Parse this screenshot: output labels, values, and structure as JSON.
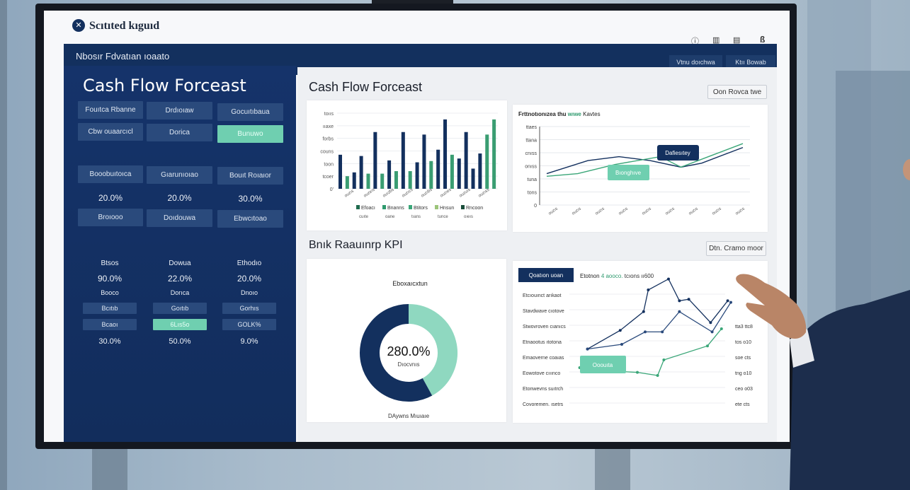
{
  "app": {
    "logo_text": "Scıtıted kıguıd",
    "header_icons": [
      "help-icon",
      "grid-icon",
      "calendar-icon",
      "user-icon"
    ]
  },
  "navbar": {
    "title": "Nbosır Fdvatıan ıoaato",
    "buttons": [
      "Vtnu doıchwa",
      "Ktıı Bowab"
    ]
  },
  "left_panel": {
    "title": "Cash Flow Forceast",
    "buttons_top": [
      "Fouıtca Rbanne",
      "Drdıoıaw",
      "Gocuıtıbaua",
      "Cbw ouaarcıcl",
      "Dorica",
      "Bunuwo"
    ],
    "active_button_index": 5,
    "metrics_row": [
      {
        "label": "Booobuıtoıca",
        "value": "20.0%"
      },
      {
        "label": "Gıarunıoıao",
        "value": "20.0%"
      },
      {
        "label": "Bouıt Roıaıor",
        "value": "30.0%"
      }
    ],
    "buttons_mid": [
      "Broıooo",
      "Doıdouwa",
      "Ebwcıtoao"
    ],
    "columns": [
      {
        "label": "Btsos",
        "value": "90.0%",
        "sub": "Booco",
        "box1": "Bcıtıb",
        "box2": "Bcaoı",
        "foot": "30.0%",
        "active": false
      },
      {
        "label": "Dowua",
        "value": "22.0%",
        "sub": "Dorıca",
        "box1": "Goıtıb",
        "box2": "6Lıs5o",
        "foot": "50.0%",
        "active": true
      },
      {
        "label": "Ethodıo",
        "value": "20.0%",
        "sub": "Dnoıo",
        "box1": "Gorhıs",
        "box2": "GOLK%",
        "foot": "9.0%",
        "active": false
      }
    ]
  },
  "main": {
    "section1_title": "Cash Flow Forceast",
    "section1_button": "Oon Rovca twe",
    "section2_title": "Bnık Raauınrp KPI",
    "section2_button": "Dtn. Cramo moor"
  },
  "colors": {
    "navy": "#13305e",
    "teal": "#6fcfb0",
    "green": "#2e9a6e",
    "dark_green": "#1f6b4e"
  },
  "chart_data": [
    {
      "type": "bar",
      "yticks": [
        "0'",
        "tcoer",
        "toon",
        "couns",
        "forbs",
        "ııaxe",
        "toııs"
      ],
      "ylim": [
        0,
        6
      ],
      "xticks": [
        "ouzıs",
        "ouzeıs",
        "ouızbs",
        "ouzıcs",
        "ouzıbs",
        "ouzıes",
        "ouzuıs",
        "ouzıss"
      ],
      "legend": [
        {
          "name": "Efoacı",
          "sub": "cuıte",
          "color": "#1f6b4e"
        },
        {
          "name": "Bnanns",
          "sub": "oane",
          "color": "#2e9a6e"
        },
        {
          "name": "Btitors",
          "sub": "tıans",
          "color": "#3aa678"
        },
        {
          "name": "Hnsun",
          "sub": "tunce",
          "color": "#9cc57a"
        },
        {
          "name": "Rncoon",
          "sub": "oıeıs",
          "color": "#1a4d3a"
        }
      ],
      "series": [
        {
          "color": "#13305e"
        },
        {
          "color": "#3a9d72"
        }
      ],
      "bars": [
        {
          "s": 0,
          "v": 2.7
        },
        {
          "s": 1,
          "v": 1.0
        },
        {
          "s": 0,
          "v": 1.3
        },
        {
          "s": 0,
          "v": 2.6
        },
        {
          "s": 1,
          "v": 1.2
        },
        {
          "s": 0,
          "v": 4.5
        },
        {
          "s": 1,
          "v": 1.2
        },
        {
          "s": 0,
          "v": 2.25
        },
        {
          "s": 1,
          "v": 1.4
        },
        {
          "s": 0,
          "v": 4.5
        },
        {
          "s": 1,
          "v": 1.4
        },
        {
          "s": 0,
          "v": 2.1
        },
        {
          "s": 0,
          "v": 4.3
        },
        {
          "s": 1,
          "v": 2.2
        },
        {
          "s": 0,
          "v": 3.1
        },
        {
          "s": 0,
          "v": 5.5
        },
        {
          "s": 1,
          "v": 2.7
        },
        {
          "s": 0,
          "v": 2.4
        },
        {
          "s": 0,
          "v": 4.5
        },
        {
          "s": 0,
          "v": 1.6
        },
        {
          "s": 0,
          "v": 2.8
        },
        {
          "s": 1,
          "v": 4.3
        },
        {
          "s": 1,
          "v": 5.5
        }
      ]
    },
    {
      "type": "line",
      "title": "Frttnotıonızea thu",
      "title_accent": "wıwe",
      "title_end": "Kavtes",
      "yticks": [
        "0",
        "tons",
        "tuna",
        "onıss",
        "cnıss",
        "ttana",
        "ttaes"
      ],
      "ylim": [
        0,
        6
      ],
      "xticks": [
        "ouzıs",
        "ouzıs",
        "ouzıs",
        "ouzıs",
        "ouzıs",
        "ouzıs",
        "ouzıs",
        "ouzıs",
        "ouzıs"
      ],
      "series": [
        {
          "color": "#13305e",
          "x": [
            0,
            2,
            3.5,
            5,
            6.5,
            7.5,
            9.5
          ],
          "y": [
            2.4,
            3.4,
            3.7,
            3.4,
            2.9,
            3.2,
            4.4
          ]
        },
        {
          "color": "#3aa678",
          "x": [
            0,
            1.5,
            3.3,
            5.5,
            6.5,
            8,
            9.5
          ],
          "y": [
            2.2,
            2.4,
            3.1,
            3.7,
            2.9,
            3.8,
            4.7
          ]
        }
      ],
      "annotations": [
        {
          "text": "Dafiesıtey",
          "color": "#13305e"
        },
        {
          "text": "Bıonghıve",
          "color": "#6fcfb0"
        }
      ]
    },
    {
      "type": "pie",
      "title": "Eboxaıcxtun",
      "center_value": "280.0%",
      "center_label": "Dıocvnıs",
      "footer": "DAywns Mıuıaıe",
      "slices": [
        {
          "value": 42,
          "color": "#8fd8c0"
        },
        {
          "value": 58,
          "color": "#13305e"
        }
      ]
    },
    {
      "type": "line",
      "tab_label": "Qoatıon uoan",
      "subtitle": "Etotnon",
      "subtitle_accent": "4 aooco.",
      "subtitle_end": "tcıons ıı600",
      "row_labels": [
        "Etcıouınct arıkaot",
        "Stavdwave cıotove",
        "Stwovroven cıanıcs",
        "Etnaootus ıtotona",
        "Emaoverne coaıas",
        "Eowotove cııınco",
        "Etonwevns suıtrch",
        "Covoremen. ısetrs"
      ],
      "right_labels": [
        "tta3 ttc8",
        "tos o10",
        "soe cts",
        "tng o10",
        "ceo o03",
        "ete cts"
      ],
      "xlim": [
        0,
        10
      ],
      "ylim": [
        0,
        8
      ],
      "series": [
        {
          "color": "#13305e",
          "x": [
            0.8,
            2.9,
            4.4,
            4.7,
            6.0,
            6.7,
            7.3,
            8.7,
            9.8
          ],
          "y": [
            4.2,
            5.4,
            6.6,
            8.0,
            8.7,
            7.3,
            7.4,
            5.9,
            7.3
          ]
        },
        {
          "color": "#2a4a7c",
          "x": [
            0.8,
            3.0,
            4.5,
            5.6,
            6.7,
            8.8,
            10
          ],
          "y": [
            4.2,
            4.5,
            5.3,
            5.3,
            6.6,
            5.3,
            7.2
          ]
        },
        {
          "color": "#3aa678",
          "x": [
            0.3,
            1.5,
            1.9,
            4.0,
            5.3,
            5.7,
            8.5,
            9.4
          ],
          "y": [
            3.0,
            3.0,
            2.8,
            2.7,
            2.5,
            3.5,
            4.4,
            5.5
          ]
        }
      ],
      "badge": "Ooouıta"
    }
  ]
}
